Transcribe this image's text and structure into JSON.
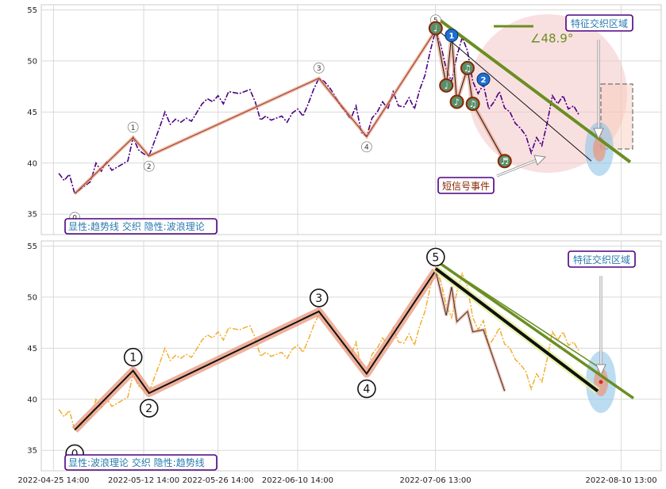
{
  "chart_data": [
    {
      "type": "line",
      "panel": "top",
      "ylim": [
        33,
        55.5
      ],
      "yticks": [
        35,
        40,
        45,
        50,
        55
      ],
      "grid": true,
      "price_color": "#4b0082",
      "price_series": [
        [
          "2022-04-26 14:00",
          39.0
        ],
        [
          "2022-04-27 14:00",
          38.3
        ],
        [
          "2022-04-28 14:00",
          38.9
        ],
        [
          "2022-04-29 14:00",
          37.0
        ],
        [
          "2022-05-02 14:00",
          38.2
        ],
        [
          "2022-05-03 14:00",
          40.0
        ],
        [
          "2022-05-04 14:00",
          39.2
        ],
        [
          "2022-05-05 14:00",
          40.1
        ],
        [
          "2022-05-06 14:00",
          39.3
        ],
        [
          "2022-05-09 14:00",
          40.2
        ],
        [
          "2022-05-10 14:00",
          42.5
        ],
        [
          "2022-05-11 14:00",
          41.3
        ],
        [
          "2022-05-12 14:00",
          40.9
        ],
        [
          "2022-05-13 14:00",
          40.7
        ],
        [
          "2022-05-15 14:00",
          43.5
        ],
        [
          "2022-05-16 14:00",
          45.0
        ],
        [
          "2022-05-17 14:00",
          43.8
        ],
        [
          "2022-05-18 14:00",
          44.3
        ],
        [
          "2022-05-19 14:00",
          44.0
        ],
        [
          "2022-05-20 14:00",
          44.4
        ],
        [
          "2022-05-21 14:00",
          44.1
        ],
        [
          "2022-05-23 14:00",
          45.8
        ],
        [
          "2022-05-24 14:00",
          46.3
        ],
        [
          "2022-05-25 14:00",
          46.0
        ],
        [
          "2022-05-26 14:00",
          46.6
        ],
        [
          "2022-05-27 14:00",
          45.8
        ],
        [
          "2022-05-28 14:00",
          47.0
        ],
        [
          "2022-05-30 14:00",
          46.8
        ],
        [
          "2022-06-01 14:00",
          47.2
        ],
        [
          "2022-06-02 14:00",
          46.0
        ],
        [
          "2022-06-03 14:00",
          44.2
        ],
        [
          "2022-06-04 14:00",
          44.6
        ],
        [
          "2022-06-05 14:00",
          44.2
        ],
        [
          "2022-06-07 14:00",
          44.6
        ],
        [
          "2022-06-08 14:00",
          44.0
        ],
        [
          "2022-06-09 14:00",
          44.9
        ],
        [
          "2022-06-10 14:00",
          45.3
        ],
        [
          "2022-06-11 14:00",
          44.6
        ],
        [
          "2022-06-12 14:00",
          45.8
        ],
        [
          "2022-06-13 14:00",
          47.2
        ],
        [
          "2022-06-14 14:00",
          48.3
        ],
        [
          "2022-06-15 14:00",
          48.0
        ],
        [
          "2022-06-16 14:00",
          47.4
        ],
        [
          "2022-06-17 14:00",
          46.6
        ],
        [
          "2022-06-18 14:00",
          45.7
        ],
        [
          "2022-06-20 14:00",
          44.3
        ],
        [
          "2022-06-21 14:00",
          45.6
        ],
        [
          "2022-06-22 14:00",
          43.0
        ],
        [
          "2022-06-23 14:00",
          42.6
        ],
        [
          "2022-06-24 14:00",
          44.4
        ],
        [
          "2022-06-25 14:00",
          45.0
        ],
        [
          "2022-06-26 14:00",
          46.0
        ],
        [
          "2022-06-27 14:00",
          45.3
        ],
        [
          "2022-06-28 14:00",
          47.0
        ],
        [
          "2022-06-29 14:00",
          45.6
        ],
        [
          "2022-06-30 14:00",
          45.5
        ],
        [
          "2022-07-01 14:00",
          46.4
        ],
        [
          "2022-07-02 14:00",
          45.3
        ],
        [
          "2022-07-03 14:00",
          47.2
        ],
        [
          "2022-07-04 14:00",
          48.6
        ],
        [
          "2022-07-05 14:00",
          51.0
        ],
        [
          "2022-07-06 14:00",
          53.0
        ],
        [
          "2022-07-07 14:00",
          51.5
        ],
        [
          "2022-07-08 14:00",
          49.2
        ],
        [
          "2022-07-09 14:00",
          48.0
        ],
        [
          "2022-07-10 14:00",
          50.5
        ],
        [
          "2022-07-11 14:00",
          52.3
        ],
        [
          "2022-07-12 14:00",
          51.0
        ],
        [
          "2022-07-13 14:00",
          48.0
        ],
        [
          "2022-07-14 14:00",
          46.8
        ],
        [
          "2022-07-15 14:00",
          47.7
        ],
        [
          "2022-07-16 14:00",
          45.3
        ],
        [
          "2022-07-17 14:00",
          46.0
        ],
        [
          "2022-07-18 14:00",
          47.0
        ],
        [
          "2022-07-19 14:00",
          45.4
        ],
        [
          "2022-07-20 14:00",
          45.0
        ],
        [
          "2022-07-21 14:00",
          43.9
        ],
        [
          "2022-07-22 14:00",
          43.4
        ],
        [
          "2022-07-23 14:00",
          42.7
        ],
        [
          "2022-07-24 14:00",
          41.0
        ],
        [
          "2022-07-25 14:00",
          42.5
        ],
        [
          "2022-07-26 14:00",
          41.7
        ],
        [
          "2022-07-27 14:00",
          43.9
        ],
        [
          "2022-07-28 14:00",
          46.6
        ],
        [
          "2022-07-29 14:00",
          45.8
        ],
        [
          "2022-07-30 14:00",
          46.6
        ],
        [
          "2022-07-31 14:00",
          45.3
        ],
        [
          "2022-08-01 14:00",
          45.6
        ],
        [
          "2022-08-02 14:00",
          44.7
        ]
      ],
      "wave_points": [
        {
          "label": "0",
          "x": "2022-04-29 14:00",
          "y": 37.0
        },
        {
          "label": "1",
          "x": "2022-05-10 14:00",
          "y": 42.5
        },
        {
          "label": "2",
          "x": "2022-05-13 14:00",
          "y": 40.7
        },
        {
          "label": "3",
          "x": "2022-06-14 14:00",
          "y": 48.3
        },
        {
          "label": "4",
          "x": "2022-06-23 14:00",
          "y": 42.6
        },
        {
          "label": "5",
          "x": "2022-07-06 14:00",
          "y": 53.0
        }
      ],
      "short_signal_markers": [
        {
          "symbol": "♩",
          "x": "2022-07-06 14:00",
          "y": 53.2
        },
        {
          "symbol": "♩",
          "x": "2022-07-08 14:00",
          "y": 47.6
        },
        {
          "symbol": "♪",
          "x": "2022-07-10 14:00",
          "y": 46.0
        },
        {
          "symbol": "♫",
          "x": "2022-07-12 14:00",
          "y": 49.3
        },
        {
          "symbol": "♫",
          "x": "2022-07-13 14:00",
          "y": 45.8
        },
        {
          "symbol": "♬",
          "x": "2022-07-19 14:00",
          "y": 40.2
        }
      ],
      "count_badges": [
        {
          "label": "1",
          "x": "2022-07-09 14:00",
          "y": 52.5
        },
        {
          "label": "2",
          "x": "2022-07-15 14:00",
          "y": 48.2
        }
      ],
      "angle_label": "∠48.9°",
      "annotation_feature": "特征交织区域",
      "annotation_short_signal": "短信号事件",
      "caption": "显性:趋势线 交织 隐性:波浪理论"
    },
    {
      "type": "line",
      "panel": "bottom",
      "ylim": [
        33,
        55.5
      ],
      "yticks": [
        35,
        40,
        45,
        50,
        55
      ],
      "grid": true,
      "price_color": "#f0b030",
      "wave_points": [
        {
          "label": "0",
          "x": "2022-04-29 14:00",
          "y": 37.0
        },
        {
          "label": "1",
          "x": "2022-05-10 14:00",
          "y": 42.8
        },
        {
          "label": "2",
          "x": "2022-05-13 14:00",
          "y": 40.6
        },
        {
          "label": "3",
          "x": "2022-06-14 14:00",
          "y": 48.6
        },
        {
          "label": "4",
          "x": "2022-06-23 14:00",
          "y": 42.5
        },
        {
          "label": "5",
          "x": "2022-07-06 14:00",
          "y": 52.6
        }
      ],
      "annotation_feature": "特征交织区域",
      "caption": "显性:波浪理论 交织 隐性:趋势线"
    }
  ],
  "x_axis": {
    "ticks": [
      "2022-04-25 14:00",
      "2022-05-12 14:00",
      "2022-05-26 14:00",
      "2022-06-10 14:00",
      "2022-07-06 13:00",
      "2022-08-10 13:00"
    ]
  },
  "colors": {
    "trend_green": "#6b8e23",
    "wave_salmon": "#e9967a",
    "label_purple": "#4b0082",
    "label_teal": "#2a7ab0",
    "event_red": "#8b2500",
    "badge_blue": "#1e6fd0",
    "ellipse_blue": "#8ec5e8"
  }
}
